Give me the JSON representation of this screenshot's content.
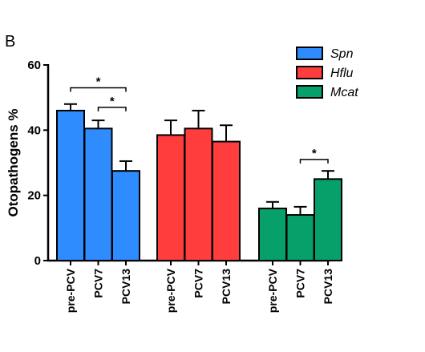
{
  "chart_data": {
    "type": "bar",
    "panel_label": "B",
    "ylabel": "Otopathogens %",
    "ylim": [
      0,
      60
    ],
    "yticks": [
      0,
      20,
      40,
      60
    ],
    "groups": [
      {
        "name": "Spn",
        "color": "#2f8cff",
        "categories": [
          "pre-PCV",
          "PCV7",
          "PCV13"
        ],
        "values": [
          46,
          40.5,
          27.5
        ],
        "errors": [
          2,
          2.5,
          3
        ]
      },
      {
        "name": "Hflu",
        "color": "#ff3d3d",
        "categories": [
          "pre-PCV",
          "PCV7",
          "PCV13"
        ],
        "values": [
          38.5,
          40.5,
          36.5
        ],
        "errors": [
          4.5,
          5.5,
          5
        ]
      },
      {
        "name": "Mcat",
        "color": "#07a06a",
        "categories": [
          "pre-PCV",
          "PCV7",
          "PCV13"
        ],
        "values": [
          16,
          14,
          25
        ],
        "errors": [
          2,
          2.5,
          2.5
        ]
      }
    ],
    "significance": [
      {
        "group": 0,
        "from": 0,
        "to": 2,
        "y": 53,
        "label": "*"
      },
      {
        "group": 0,
        "from": 1,
        "to": 2,
        "y": 47,
        "label": "*"
      },
      {
        "group": 2,
        "from": 1,
        "to": 2,
        "y": 31,
        "label": "*"
      }
    ],
    "legend": {
      "position": "top-right",
      "entries": [
        "Spn",
        "Hflu",
        "Mcat"
      ]
    },
    "grid": false
  }
}
